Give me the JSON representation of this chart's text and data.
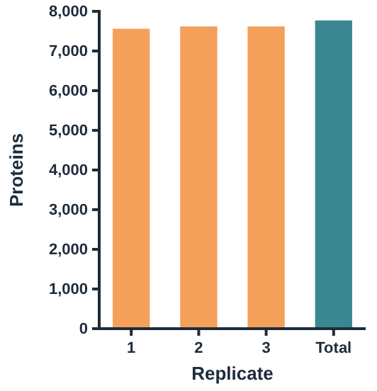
{
  "chart_data": {
    "type": "bar",
    "xlabel": "Replicate",
    "ylabel": "Proteins",
    "categories": [
      "1",
      "2",
      "3",
      "Total"
    ],
    "values": [
      7560,
      7620,
      7620,
      7770
    ],
    "colors": [
      "#f4a05a",
      "#f4a05a",
      "#f4a05a",
      "#3a8791"
    ],
    "ylim": [
      0,
      8000
    ],
    "yticks": [
      {
        "value": 0,
        "label": "0"
      },
      {
        "value": 1000,
        "label": "1,000"
      },
      {
        "value": 2000,
        "label": "2,000"
      },
      {
        "value": 3000,
        "label": "3,000"
      },
      {
        "value": 4000,
        "label": "4,000"
      },
      {
        "value": 5000,
        "label": "5,000"
      },
      {
        "value": 6000,
        "label": "6,000"
      },
      {
        "value": 7000,
        "label": "7,000"
      },
      {
        "value": 8000,
        "label": "8,000"
      }
    ],
    "grid": false
  }
}
